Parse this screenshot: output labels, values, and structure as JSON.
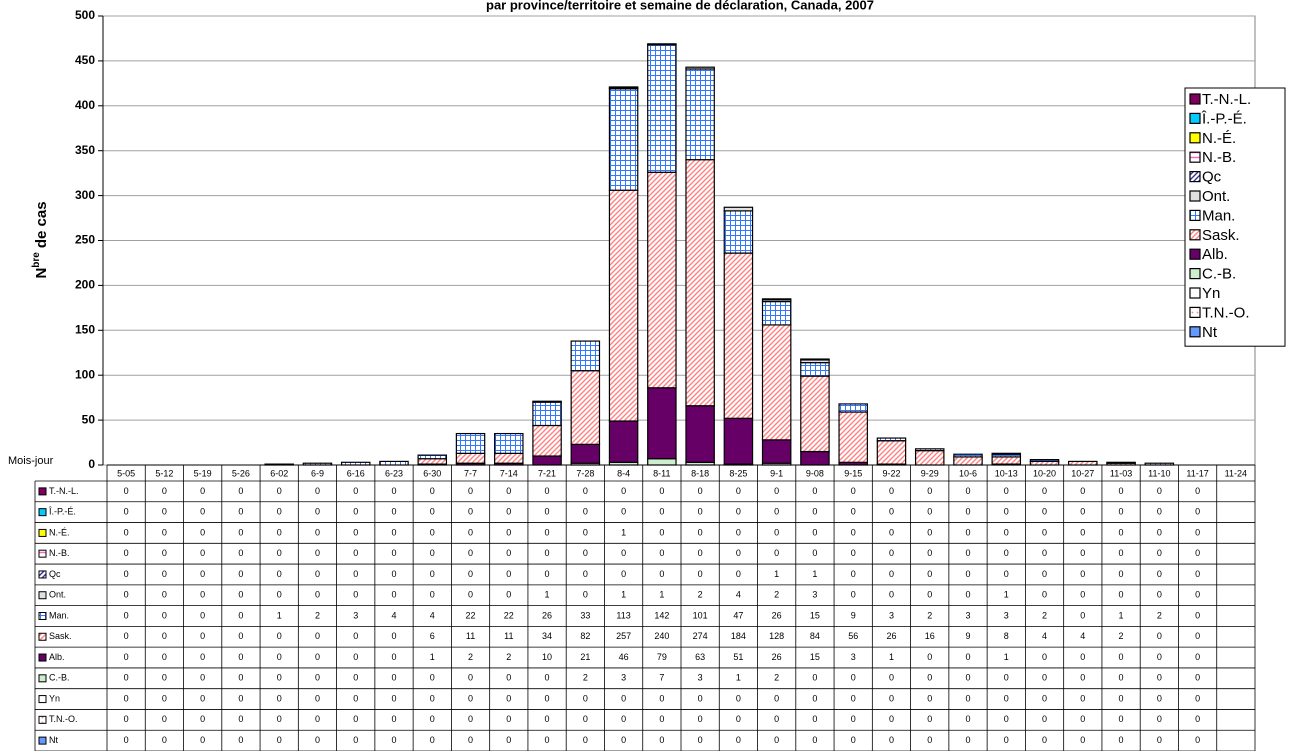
{
  "chart_data": {
    "type": "stacked_bar",
    "title": "par province/territoire et semaine de déclaration, Canada, 2007",
    "y_label": [
      "N",
      "bre",
      "de cas"
    ],
    "x_label": "Mois-jour",
    "categories": [
      "5-05",
      "5-12",
      "5-19",
      "5-26",
      "6-02",
      "6-9",
      "6-16",
      "6-23",
      "6-30",
      "7-7",
      "7-14",
      "7-21",
      "7-28",
      "8-4",
      "8-11",
      "8-18",
      "8-25",
      "9-1",
      "9-08",
      "9-15",
      "9-22",
      "9-29",
      "10-6",
      "10-13",
      "10-20",
      "10-27",
      "11-03",
      "11-10",
      "11-17",
      "11-24"
    ],
    "ylim": [
      0,
      500
    ],
    "yticks": [
      0,
      50,
      100,
      150,
      200,
      250,
      300,
      350,
      400,
      450,
      500
    ],
    "grid": true,
    "legend": "right",
    "series": [
      {
        "name": "T.-N.-L.",
        "color": "#800060",
        "pattern": "solid",
        "values": [
          0,
          0,
          0,
          0,
          0,
          0,
          0,
          0,
          0,
          0,
          0,
          0,
          0,
          0,
          0,
          0,
          0,
          0,
          0,
          0,
          0,
          0,
          0,
          0,
          0,
          0,
          0,
          0,
          0,
          null
        ]
      },
      {
        "name": "Î.-P.-É.",
        "color": "#00ccff",
        "pattern": "solid",
        "values": [
          0,
          0,
          0,
          0,
          0,
          0,
          0,
          0,
          0,
          0,
          0,
          0,
          0,
          0,
          0,
          0,
          0,
          0,
          0,
          0,
          0,
          0,
          0,
          0,
          0,
          0,
          0,
          0,
          0,
          null
        ]
      },
      {
        "name": "N.-É.",
        "color": "#ffff00",
        "pattern": "solid",
        "values": [
          0,
          0,
          0,
          0,
          0,
          0,
          0,
          0,
          0,
          0,
          0,
          0,
          0,
          1,
          0,
          0,
          0,
          0,
          0,
          0,
          0,
          0,
          0,
          0,
          0,
          0,
          0,
          0,
          0,
          null
        ]
      },
      {
        "name": "N.-B.",
        "color": "#ff66cc",
        "pattern": "hlines",
        "values": [
          0,
          0,
          0,
          0,
          0,
          0,
          0,
          0,
          0,
          0,
          0,
          0,
          0,
          0,
          0,
          0,
          0,
          0,
          0,
          0,
          0,
          0,
          0,
          0,
          0,
          0,
          0,
          0,
          0,
          null
        ]
      },
      {
        "name": "Qc",
        "color": "#333399",
        "pattern": "diagonal",
        "values": [
          0,
          0,
          0,
          0,
          0,
          0,
          0,
          0,
          0,
          0,
          0,
          0,
          0,
          0,
          0,
          0,
          0,
          1,
          1,
          0,
          0,
          0,
          0,
          0,
          0,
          0,
          0,
          0,
          0,
          null
        ]
      },
      {
        "name": "Ont.",
        "color": "#e0e0e0",
        "pattern": "solid",
        "values": [
          0,
          0,
          0,
          0,
          0,
          0,
          0,
          0,
          0,
          0,
          0,
          1,
          0,
          1,
          1,
          2,
          4,
          2,
          3,
          0,
          0,
          0,
          0,
          1,
          0,
          0,
          0,
          0,
          0,
          null
        ]
      },
      {
        "name": "Man.",
        "color": "#3377ff",
        "pattern": "grid",
        "values": [
          0,
          0,
          0,
          0,
          1,
          2,
          3,
          4,
          4,
          22,
          22,
          26,
          33,
          113,
          142,
          101,
          47,
          26,
          15,
          9,
          3,
          2,
          3,
          3,
          2,
          0,
          1,
          2,
          0,
          null
        ]
      },
      {
        "name": "Sask.",
        "color": "#ff8080",
        "pattern": "diagonal",
        "values": [
          0,
          0,
          0,
          0,
          0,
          0,
          0,
          0,
          6,
          11,
          11,
          34,
          82,
          257,
          240,
          274,
          184,
          128,
          84,
          56,
          26,
          16,
          9,
          8,
          4,
          4,
          2,
          0,
          0,
          null
        ]
      },
      {
        "name": "Alb.",
        "color": "#660066",
        "pattern": "solid",
        "values": [
          0,
          0,
          0,
          0,
          0,
          0,
          0,
          0,
          1,
          2,
          2,
          10,
          21,
          46,
          79,
          63,
          51,
          26,
          15,
          3,
          1,
          0,
          0,
          1,
          0,
          0,
          0,
          0,
          0,
          null
        ]
      },
      {
        "name": "C.-B.",
        "color": "#cceecc",
        "pattern": "solid",
        "values": [
          0,
          0,
          0,
          0,
          0,
          0,
          0,
          0,
          0,
          0,
          0,
          0,
          2,
          3,
          7,
          3,
          1,
          2,
          0,
          0,
          0,
          0,
          0,
          0,
          0,
          0,
          0,
          0,
          0,
          null
        ]
      },
      {
        "name": "Yn",
        "color": "#ffffff",
        "pattern": "solid",
        "values": [
          0,
          0,
          0,
          0,
          0,
          0,
          0,
          0,
          0,
          0,
          0,
          0,
          0,
          0,
          0,
          0,
          0,
          0,
          0,
          0,
          0,
          0,
          0,
          0,
          0,
          0,
          0,
          0,
          0,
          null
        ]
      },
      {
        "name": "T.N.-O.",
        "color": "#ff8080",
        "pattern": "dots",
        "values": [
          0,
          0,
          0,
          0,
          0,
          0,
          0,
          0,
          0,
          0,
          0,
          0,
          0,
          0,
          0,
          0,
          0,
          0,
          0,
          0,
          0,
          0,
          0,
          0,
          0,
          0,
          0,
          0,
          0,
          null
        ]
      },
      {
        "name": "Nt",
        "color": "#6699ff",
        "pattern": "solid",
        "values": [
          0,
          0,
          0,
          0,
          0,
          0,
          0,
          0,
          0,
          0,
          0,
          0,
          0,
          0,
          0,
          0,
          0,
          0,
          0,
          0,
          0,
          0,
          0,
          0,
          0,
          0,
          0,
          0,
          0,
          null
        ]
      }
    ]
  }
}
